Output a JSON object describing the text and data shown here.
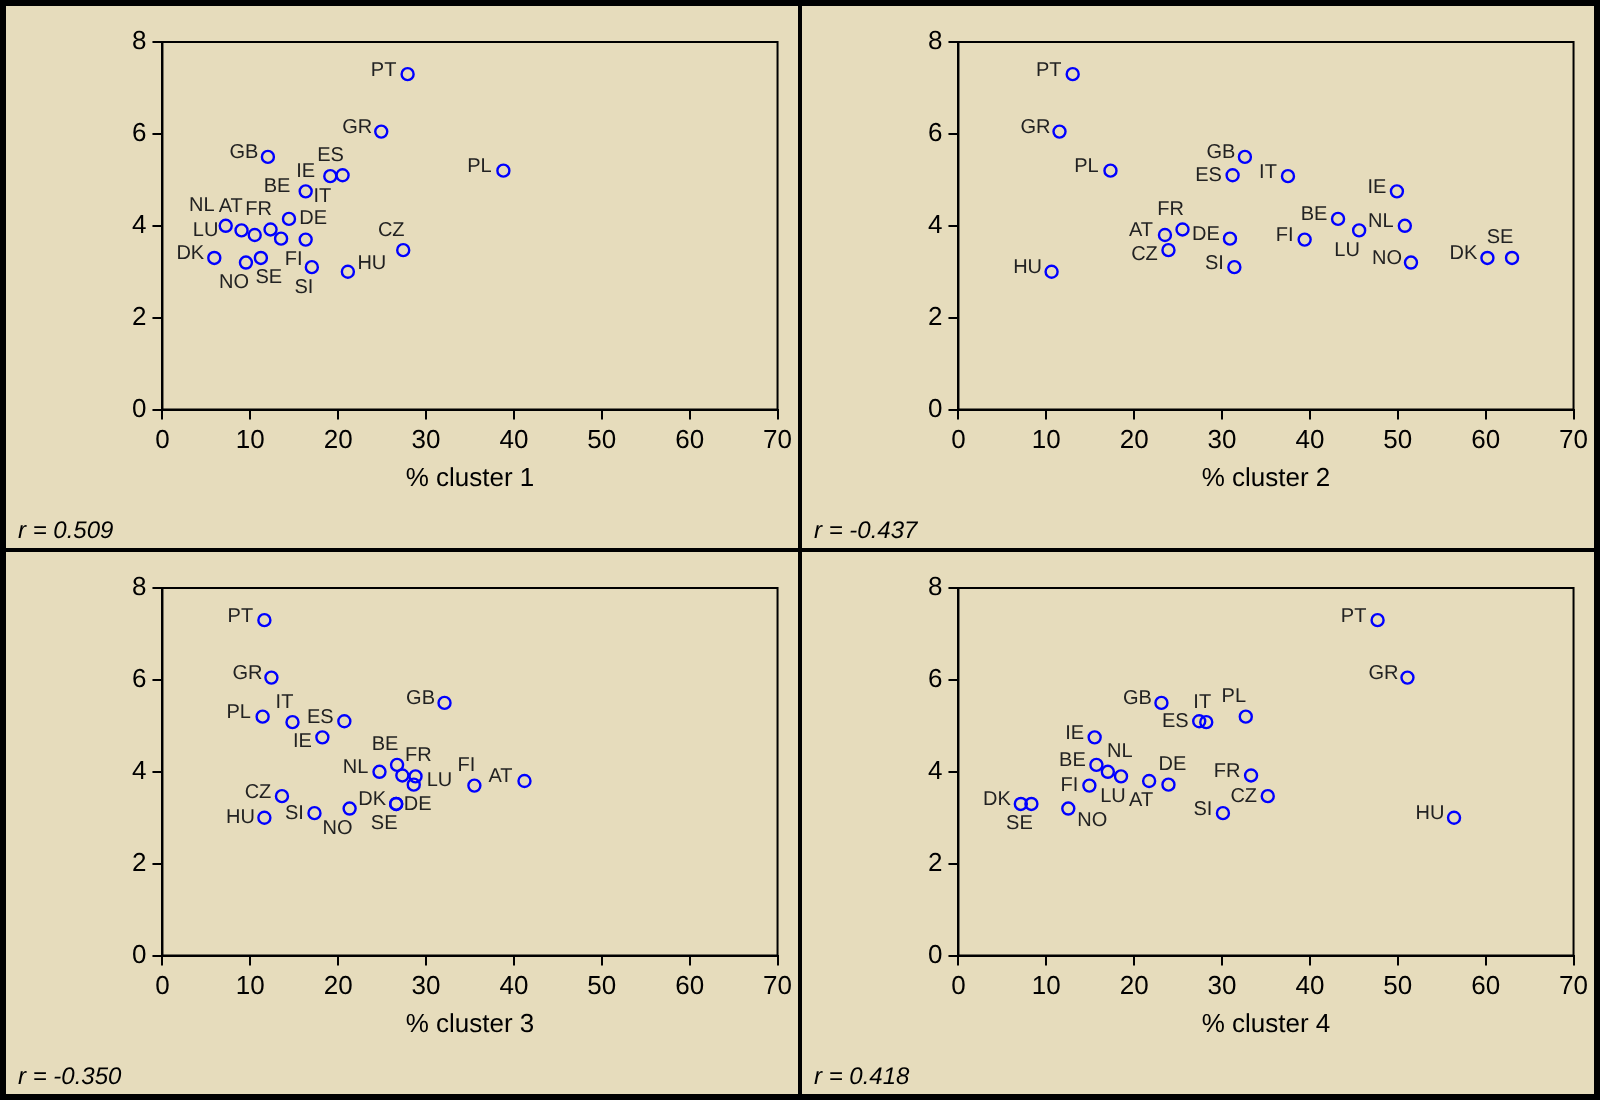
{
  "chart_data": [
    {
      "type": "scatter",
      "xlabel": "% cluster 1",
      "annotations": [
        "r = 0.509"
      ],
      "xlim": [
        0,
        70
      ],
      "xticks": [
        0,
        10,
        20,
        30,
        40,
        50,
        60,
        70
      ],
      "ylim": [
        0,
        8
      ],
      "yticks": [
        0,
        2,
        4,
        6,
        8
      ],
      "grid": false,
      "marker": "circle",
      "legend": false,
      "series": [
        {
          "color": "#0000ff",
          "x": [
            27.9,
            24.9,
            12.0,
            38.8,
            20.5,
            19.1,
            16.3,
            14.4,
            12.3,
            9.0,
            7.2,
            10.5,
            13.5,
            16.3,
            27.4,
            9.5,
            5.9,
            11.2,
            17.0,
            21.1
          ],
          "values": [
            7.3,
            6.05,
            5.5,
            5.2,
            5.1,
            5.08,
            4.75,
            4.15,
            3.92,
            3.9,
            4.0,
            3.8,
            3.72,
            3.7,
            3.47,
            3.2,
            3.3,
            3.3,
            3.1,
            3.0
          ],
          "value_labels": [
            "PT",
            "GR",
            "GB",
            "PL",
            "ES",
            "IT",
            "IE",
            "BE",
            "FR",
            "LU",
            "NL",
            "AT",
            "DE",
            "FI",
            "CZ",
            "NO",
            "DK",
            "SE",
            "SI",
            "HU"
          ]
        }
      ]
    },
    {
      "type": "scatter",
      "xlabel": "% cluster 2",
      "annotations": [
        "r = -0.437"
      ],
      "xlim": [
        0,
        70
      ],
      "xticks": [
        0,
        10,
        20,
        30,
        40,
        50,
        60,
        70
      ],
      "ylim": [
        0,
        8
      ],
      "yticks": [
        0,
        2,
        4,
        6,
        8
      ],
      "grid": false,
      "marker": "circle",
      "legend": false,
      "series": [
        {
          "color": "#0000ff",
          "x": [
            13.0,
            11.5,
            32.6,
            17.3,
            31.2,
            37.5,
            49.9,
            43.2,
            25.5,
            45.6,
            50.8,
            23.5,
            30.9,
            39.4,
            23.9,
            51.5,
            60.2,
            63.0,
            31.4,
            10.6
          ],
          "values": [
            7.3,
            6.05,
            5.5,
            5.2,
            5.1,
            5.08,
            4.75,
            4.15,
            3.92,
            3.9,
            4.0,
            3.8,
            3.72,
            3.7,
            3.47,
            3.2,
            3.3,
            3.3,
            3.1,
            3.0
          ],
          "value_labels": [
            "PT",
            "GR",
            "GB",
            "PL",
            "ES",
            "IT",
            "IE",
            "BE",
            "FR",
            "LU",
            "NL",
            "AT",
            "DE",
            "FI",
            "CZ",
            "NO",
            "DK",
            "SE",
            "SI",
            "HU"
          ]
        }
      ]
    },
    {
      "type": "scatter",
      "xlabel": "% cluster 3",
      "annotations": [
        "r = -0.350"
      ],
      "xlim": [
        0,
        70
      ],
      "xticks": [
        0,
        10,
        20,
        30,
        40,
        50,
        60,
        70
      ],
      "ylim": [
        0,
        8
      ],
      "yticks": [
        0,
        2,
        4,
        6,
        8
      ],
      "grid": false,
      "marker": "circle",
      "legend": false,
      "series": [
        {
          "color": "#0000ff",
          "x": [
            11.6,
            12.4,
            32.1,
            11.4,
            20.7,
            14.8,
            18.2,
            26.7,
            27.3,
            28.8,
            24.7,
            41.2,
            28.6,
            35.5,
            13.6,
            21.3,
            26.6,
            26.6,
            17.3,
            11.6
          ],
          "values": [
            7.3,
            6.05,
            5.5,
            5.2,
            5.1,
            5.08,
            4.75,
            4.15,
            3.92,
            3.9,
            4.0,
            3.8,
            3.72,
            3.7,
            3.47,
            3.2,
            3.3,
            3.3,
            3.1,
            3.0
          ],
          "value_labels": [
            "PT",
            "GR",
            "GB",
            "PL",
            "ES",
            "IT",
            "IE",
            "BE",
            "FR",
            "LU",
            "NL",
            "AT",
            "DE",
            "FI",
            "CZ",
            "NO",
            "DK",
            "SE",
            "SI",
            "HU"
          ]
        }
      ]
    },
    {
      "type": "scatter",
      "xlabel": "% cluster 4",
      "annotations": [
        "r = 0.418"
      ],
      "xlim": [
        0,
        70
      ],
      "xticks": [
        0,
        10,
        20,
        30,
        40,
        50,
        60,
        70
      ],
      "ylim": [
        0,
        8
      ],
      "yticks": [
        0,
        2,
        4,
        6,
        8
      ],
      "grid": false,
      "marker": "circle",
      "legend": false,
      "series": [
        {
          "color": "#0000ff",
          "x": [
            47.7,
            51.1,
            23.1,
            32.7,
            27.4,
            28.2,
            15.5,
            15.7,
            33.3,
            18.5,
            17.0,
            21.7,
            23.9,
            14.9,
            35.2,
            12.5,
            7.1,
            8.3,
            30.1,
            56.4
          ],
          "values": [
            7.3,
            6.05,
            5.5,
            5.2,
            5.1,
            5.08,
            4.75,
            4.15,
            3.92,
            3.9,
            4.0,
            3.8,
            3.72,
            3.7,
            3.47,
            3.2,
            3.3,
            3.3,
            3.1,
            3.0
          ],
          "value_labels": [
            "PT",
            "GR",
            "GB",
            "PL",
            "ES",
            "IT",
            "IE",
            "BE",
            "FR",
            "LU",
            "NL",
            "AT",
            "DE",
            "FI",
            "CZ",
            "NO",
            "DK",
            "SE",
            "SI",
            "HU"
          ]
        }
      ]
    }
  ]
}
